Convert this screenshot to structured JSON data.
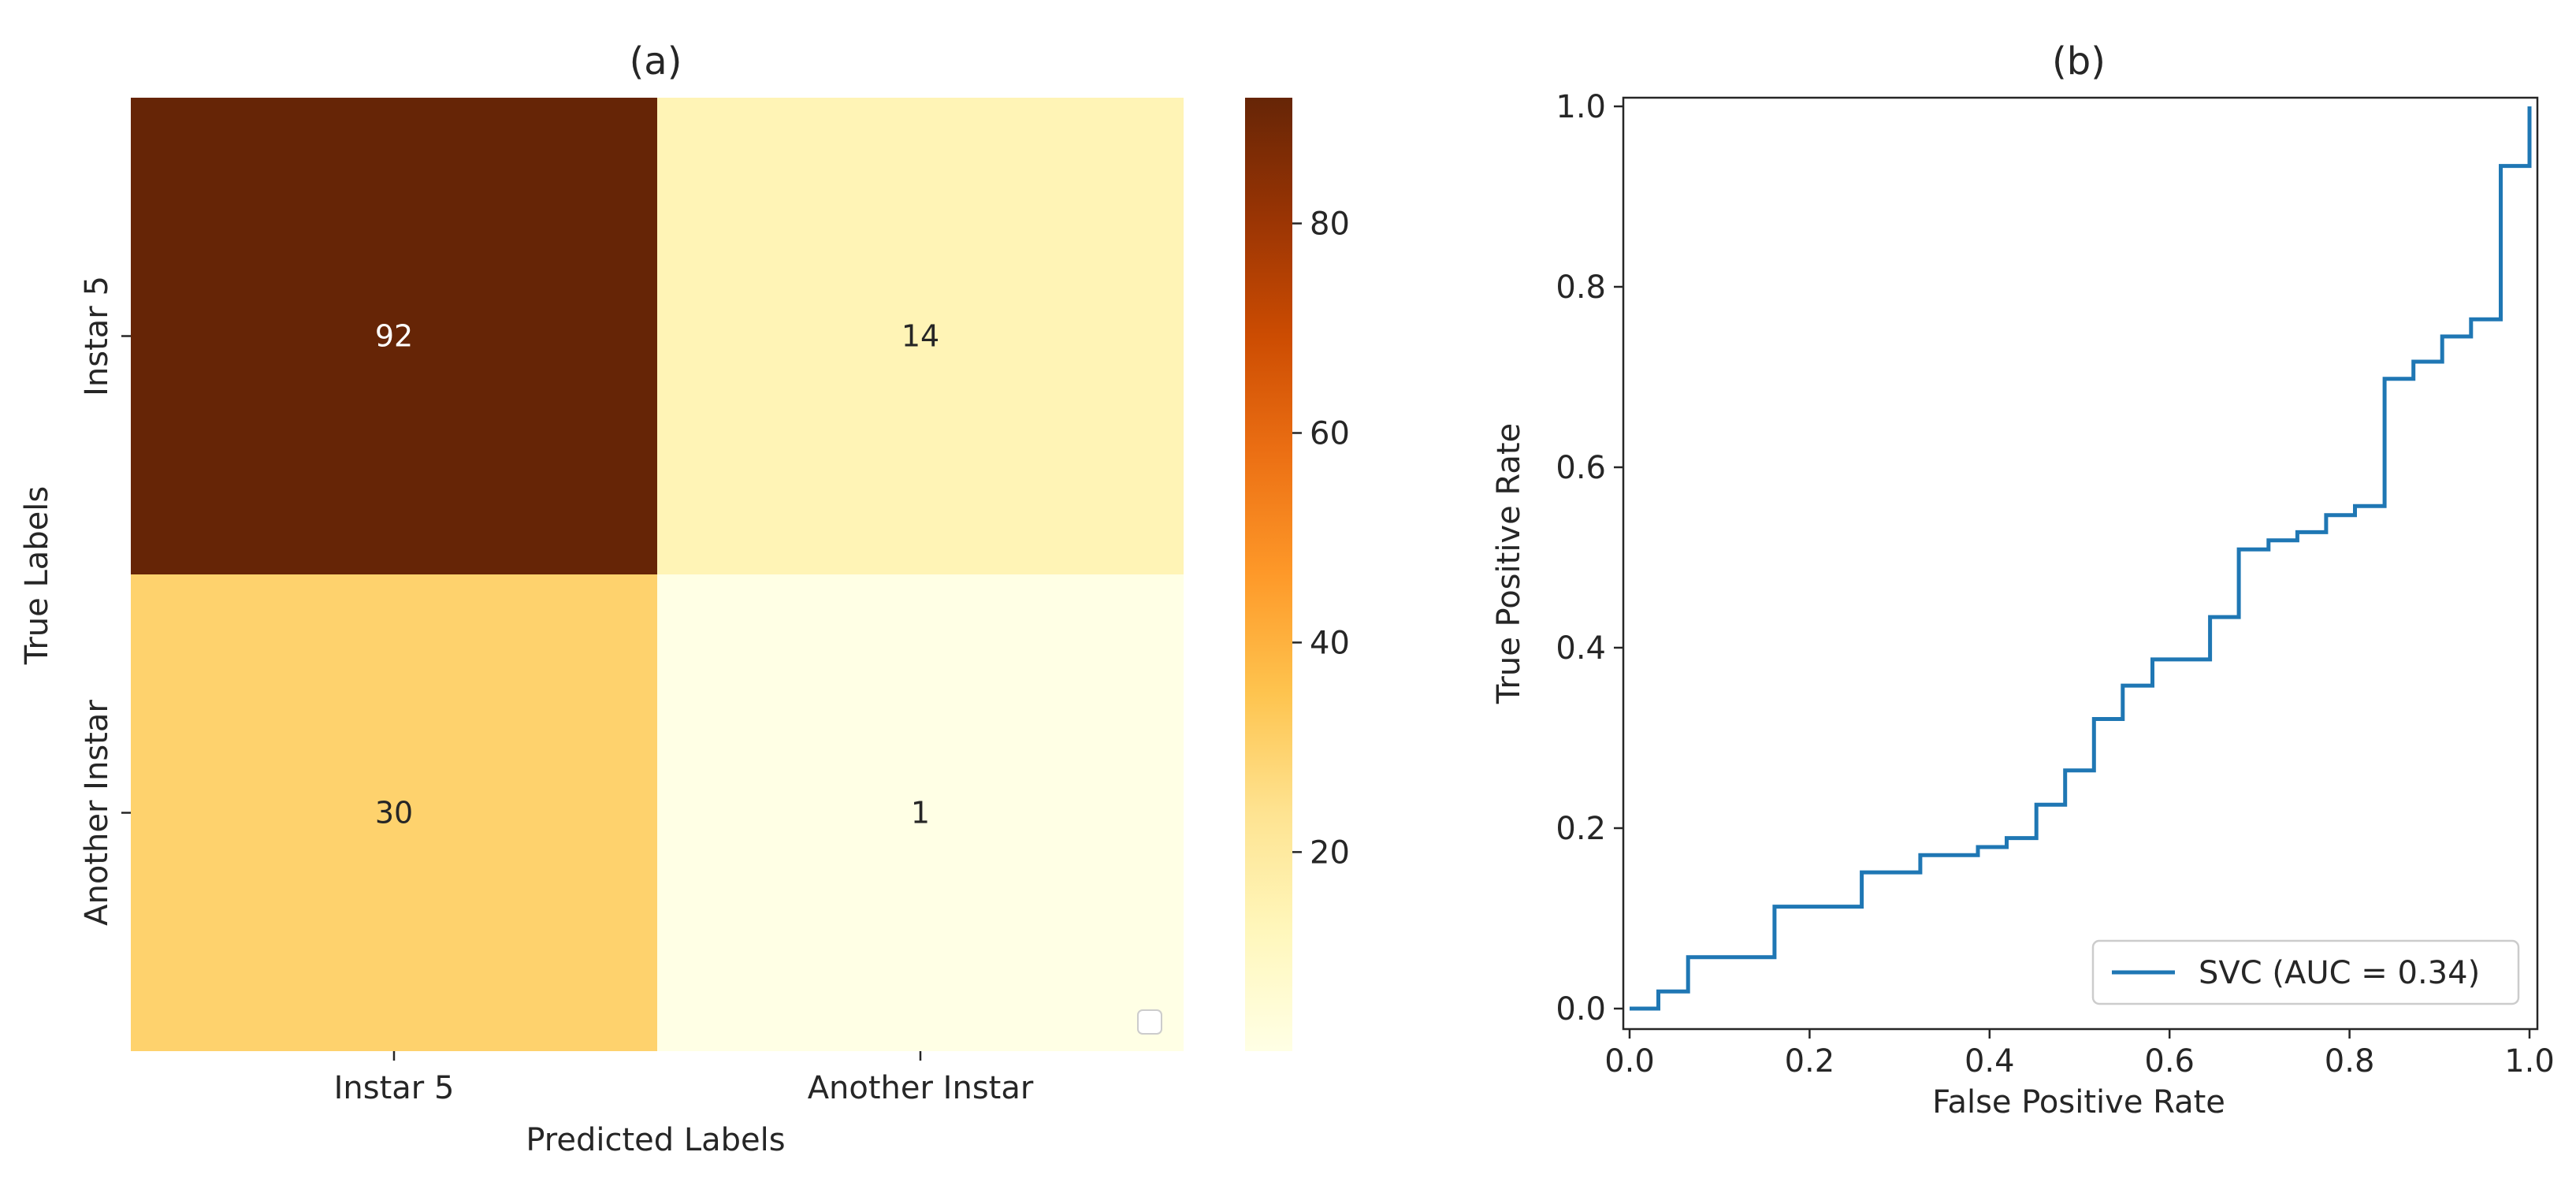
{
  "chart_data": [
    {
      "type": "heatmap",
      "title": "(a)",
      "xlabel": "Predicted Labels",
      "ylabel": "True Labels",
      "x_categories": [
        "Instar 5",
        "Another Instar"
      ],
      "y_categories": [
        "Instar 5",
        "Another Instar"
      ],
      "values": [
        [
          92,
          14
        ],
        [
          30,
          1
        ]
      ],
      "colormap": "YlOrBr",
      "colorbar": {
        "range": [
          1,
          92
        ],
        "ticks": [
          20,
          40,
          60,
          80
        ]
      },
      "legend": "bottom-right, empty"
    },
    {
      "type": "line",
      "title": "(b)",
      "xlabel": "False Positive Rate",
      "ylabel": "True Positive Rate",
      "xlim": [
        0,
        1
      ],
      "ylim": [
        0,
        1
      ],
      "xticks": [
        "0.0",
        "0.2",
        "0.4",
        "0.6",
        "0.8",
        "1.0"
      ],
      "yticks": [
        "0.0",
        "0.2",
        "0.4",
        "0.6",
        "0.8",
        "1.0"
      ],
      "legend": "lower right",
      "series": [
        {
          "name": "SVC (AUC = 0.34)",
          "color": "#1f77b4",
          "step": true,
          "x": [
            0,
            0.032,
            0.032,
            0.065,
            0.065,
            0.161,
            0.161,
            0.258,
            0.258,
            0.323,
            0.323,
            0.387,
            0.387,
            0.419,
            0.419,
            0.452,
            0.452,
            0.484,
            0.484,
            0.516,
            0.516,
            0.548,
            0.548,
            0.581,
            0.581,
            0.645,
            0.645,
            0.677,
            0.677,
            0.71,
            0.71,
            0.742,
            0.742,
            0.774,
            0.774,
            0.806,
            0.806,
            0.839,
            0.839,
            0.871,
            0.871,
            0.903,
            0.903,
            0.935,
            0.935,
            0.968,
            0.968,
            1.0,
            1.0
          ],
          "y": [
            0,
            0,
            0.019,
            0.019,
            0.057,
            0.057,
            0.113,
            0.113,
            0.151,
            0.151,
            0.17,
            0.17,
            0.179,
            0.179,
            0.189,
            0.189,
            0.226,
            0.226,
            0.264,
            0.264,
            0.321,
            0.321,
            0.358,
            0.358,
            0.387,
            0.387,
            0.434,
            0.434,
            0.509,
            0.509,
            0.519,
            0.519,
            0.528,
            0.528,
            0.547,
            0.547,
            0.557,
            0.557,
            0.698,
            0.698,
            0.717,
            0.717,
            0.745,
            0.745,
            0.764,
            0.764,
            0.934,
            0.934,
            1.0
          ]
        }
      ]
    }
  ]
}
